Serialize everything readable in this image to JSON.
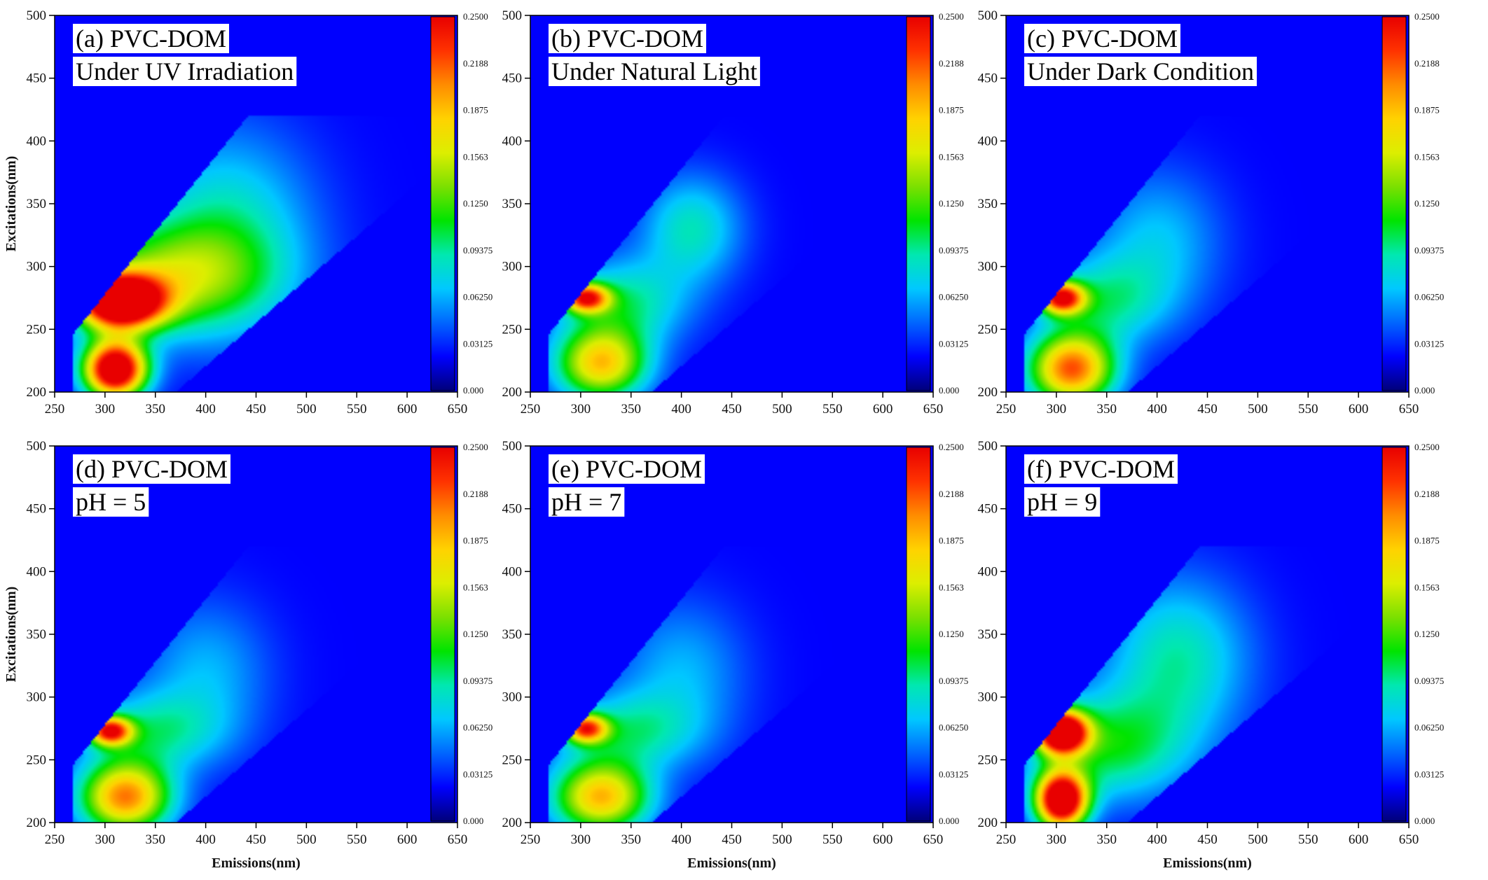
{
  "figure": {
    "colors": {
      "background": "#0000ff",
      "colormap": [
        "#00007a",
        "#0000ff",
        "#0066ff",
        "#00c8ff",
        "#00e8b0",
        "#00e400",
        "#7be000",
        "#dcee00",
        "#ffd200",
        "#ff8c00",
        "#ff3200",
        "#e80000"
      ]
    }
  },
  "chart_data": [
    {
      "type": "heatmap",
      "title_line1": "(a) PVC-DOM",
      "title_line2": "Under UV Irradiation",
      "xlabel": "",
      "ylabel": "Excitations(nm)",
      "xlim": [
        250,
        650
      ],
      "ylim": [
        200,
        500
      ],
      "xticks": [
        250,
        300,
        350,
        400,
        450,
        500,
        550,
        600,
        650
      ],
      "yticks": [
        200,
        250,
        300,
        350,
        400,
        450,
        500
      ],
      "colorbar_ticks": [
        "0.000",
        "0.03125",
        "0.06250",
        "0.09375",
        "0.1250",
        "0.1563",
        "0.1875",
        "0.2188",
        "0.2500"
      ],
      "clim": [
        0,
        0.25
      ],
      "peaks": [
        {
          "em": 310,
          "ex": 218,
          "intensity": 0.3,
          "sx": 22,
          "sy": 16
        },
        {
          "em": 315,
          "ex": 272,
          "intensity": 0.3,
          "sx": 30,
          "sy": 15
        },
        {
          "em": 360,
          "ex": 290,
          "intensity": 0.11,
          "sx": 70,
          "sy": 30
        },
        {
          "em": 420,
          "ex": 330,
          "intensity": 0.07,
          "sx": 60,
          "sy": 55
        }
      ]
    },
    {
      "type": "heatmap",
      "title_line1": "(b) PVC-DOM",
      "title_line2": "Under Natural Light",
      "xlabel": "",
      "ylabel": "",
      "xlim": [
        250,
        650
      ],
      "ylim": [
        200,
        500
      ],
      "xticks": [
        250,
        300,
        350,
        400,
        450,
        500,
        550,
        600,
        650
      ],
      "yticks": [
        200,
        250,
        300,
        350,
        400,
        450,
        500
      ],
      "colorbar_ticks": [
        "0.000",
        "0.03125",
        "0.06250",
        "0.09375",
        "0.1250",
        "0.1563",
        "0.1875",
        "0.2188",
        "0.2500"
      ],
      "clim": [
        0,
        0.25
      ],
      "peaks": [
        {
          "em": 320,
          "ex": 222,
          "intensity": 0.17,
          "sx": 32,
          "sy": 20
        },
        {
          "em": 305,
          "ex": 275,
          "intensity": 0.2,
          "sx": 16,
          "sy": 8
        },
        {
          "em": 340,
          "ex": 270,
          "intensity": 0.08,
          "sx": 45,
          "sy": 25
        },
        {
          "em": 410,
          "ex": 330,
          "intensity": 0.07,
          "sx": 35,
          "sy": 30
        }
      ]
    },
    {
      "type": "heatmap",
      "title_line1": "(c) PVC-DOM",
      "title_line2": "Under Dark Condition",
      "xlabel": "",
      "ylabel": "",
      "xlim": [
        250,
        650
      ],
      "ylim": [
        200,
        500
      ],
      "xticks": [
        250,
        300,
        350,
        400,
        450,
        500,
        550,
        600,
        650
      ],
      "yticks": [
        200,
        250,
        300,
        350,
        400,
        450,
        500
      ],
      "colorbar_ticks": [
        "0.000",
        "0.03125",
        "0.06250",
        "0.09375",
        "0.1250",
        "0.1563",
        "0.1875",
        "0.2188",
        "0.2500"
      ],
      "clim": [
        0,
        0.25
      ],
      "peaks": [
        {
          "em": 315,
          "ex": 218,
          "intensity": 0.21,
          "sx": 30,
          "sy": 20
        },
        {
          "em": 305,
          "ex": 275,
          "intensity": 0.22,
          "sx": 16,
          "sy": 9
        },
        {
          "em": 345,
          "ex": 272,
          "intensity": 0.07,
          "sx": 45,
          "sy": 25
        },
        {
          "em": 400,
          "ex": 320,
          "intensity": 0.05,
          "sx": 45,
          "sy": 40
        }
      ]
    },
    {
      "type": "heatmap",
      "title_line1": "(d) PVC-DOM",
      "title_line2": "pH = 5",
      "xlabel": "Emissions(nm)",
      "ylabel": "Excitations(nm)",
      "xlim": [
        250,
        650
      ],
      "ylim": [
        200,
        500
      ],
      "xticks": [
        250,
        300,
        350,
        400,
        450,
        500,
        550,
        600,
        650
      ],
      "yticks": [
        200,
        250,
        300,
        350,
        400,
        450,
        500
      ],
      "colorbar_ticks": [
        "0.000",
        "0.03125",
        "0.06250",
        "0.09375",
        "0.1250",
        "0.1563",
        "0.1875",
        "0.2188",
        "0.2500"
      ],
      "clim": [
        0,
        0.25
      ],
      "peaks": [
        {
          "em": 320,
          "ex": 220,
          "intensity": 0.2,
          "sx": 32,
          "sy": 20
        },
        {
          "em": 305,
          "ex": 273,
          "intensity": 0.21,
          "sx": 15,
          "sy": 8
        },
        {
          "em": 345,
          "ex": 272,
          "intensity": 0.07,
          "sx": 50,
          "sy": 22
        },
        {
          "em": 400,
          "ex": 320,
          "intensity": 0.045,
          "sx": 45,
          "sy": 40
        }
      ]
    },
    {
      "type": "heatmap",
      "title_line1": "(e) PVC-DOM",
      "title_line2": "pH = 7",
      "xlabel": "Emissions(nm)",
      "ylabel": "",
      "xlim": [
        250,
        650
      ],
      "ylim": [
        200,
        500
      ],
      "xticks": [
        250,
        300,
        350,
        400,
        450,
        500,
        550,
        600,
        650
      ],
      "yticks": [
        200,
        250,
        300,
        350,
        400,
        450,
        500
      ],
      "colorbar_ticks": [
        "0.000",
        "0.03125",
        "0.06250",
        "0.09375",
        "0.1250",
        "0.1563",
        "0.1875",
        "0.2188",
        "0.2500"
      ],
      "clim": [
        0,
        0.25
      ],
      "peaks": [
        {
          "em": 320,
          "ex": 220,
          "intensity": 0.18,
          "sx": 34,
          "sy": 20
        },
        {
          "em": 305,
          "ex": 275,
          "intensity": 0.19,
          "sx": 15,
          "sy": 8
        },
        {
          "em": 345,
          "ex": 272,
          "intensity": 0.07,
          "sx": 50,
          "sy": 22
        },
        {
          "em": 400,
          "ex": 320,
          "intensity": 0.045,
          "sx": 45,
          "sy": 40
        }
      ]
    },
    {
      "type": "heatmap",
      "title_line1": "(f) PVC-DOM",
      "title_line2": "pH = 9",
      "xlabel": "Emissions(nm)",
      "ylabel": "",
      "xlim": [
        250,
        650
      ],
      "ylim": [
        200,
        500
      ],
      "xticks": [
        250,
        300,
        350,
        400,
        450,
        500,
        550,
        600,
        650
      ],
      "yticks": [
        200,
        250,
        300,
        350,
        400,
        450,
        500
      ],
      "colorbar_ticks": [
        "0.000",
        "0.03125",
        "0.06250",
        "0.09375",
        "0.1250",
        "0.1563",
        "0.1875",
        "0.2188",
        "0.2500"
      ],
      "clim": [
        0,
        0.25
      ],
      "peaks": [
        {
          "em": 305,
          "ex": 218,
          "intensity": 0.3,
          "sx": 18,
          "sy": 16
        },
        {
          "em": 305,
          "ex": 272,
          "intensity": 0.3,
          "sx": 18,
          "sy": 12
        },
        {
          "em": 350,
          "ex": 260,
          "intensity": 0.09,
          "sx": 55,
          "sy": 30
        },
        {
          "em": 420,
          "ex": 330,
          "intensity": 0.075,
          "sx": 50,
          "sy": 45
        }
      ]
    }
  ]
}
